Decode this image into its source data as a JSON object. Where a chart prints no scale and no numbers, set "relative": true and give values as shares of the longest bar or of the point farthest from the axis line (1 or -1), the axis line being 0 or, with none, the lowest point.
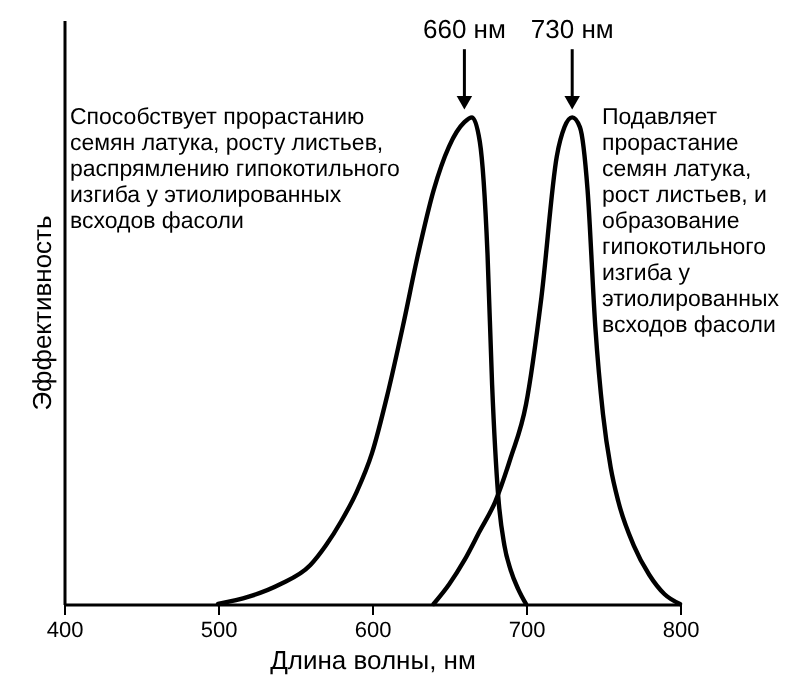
{
  "chart_data": {
    "type": "line",
    "xlabel": "Длина волны, нм",
    "ylabel": "Эффективность",
    "relative": true,
    "xlim": [
      400,
      800
    ],
    "xticks": [
      400,
      500,
      600,
      700,
      800
    ],
    "grid": false,
    "marker": "none",
    "line_style": "solid",
    "series": [
      {
        "color": "#000000",
        "x": [
          500,
          520,
          540,
          560,
          570,
          580,
          590,
          600,
          610,
          620,
          630,
          640,
          650,
          660,
          665,
          670,
          675,
          678,
          682,
          686,
          690,
          695,
          700
        ],
        "values": [
          0,
          0.015,
          0.04,
          0.08,
          0.12,
          0.17,
          0.23,
          0.31,
          0.43,
          0.57,
          0.72,
          0.85,
          0.94,
          0.99,
          1.0,
          0.95,
          0.72,
          0.45,
          0.22,
          0.12,
          0.07,
          0.03,
          0
        ]
      },
      {
        "color": "#000000",
        "x": [
          640,
          650,
          660,
          670,
          680,
          690,
          700,
          710,
          720,
          725,
          730,
          735,
          740,
          745,
          750,
          755,
          760,
          770,
          780,
          790,
          800
        ],
        "values": [
          0,
          0.04,
          0.09,
          0.15,
          0.21,
          0.3,
          0.41,
          0.63,
          0.92,
          0.98,
          1.0,
          0.98,
          0.85,
          0.57,
          0.39,
          0.28,
          0.21,
          0.12,
          0.06,
          0.02,
          0
        ]
      }
    ],
    "annotations": [
      {
        "text": "660 нм",
        "x": 660,
        "y": 1.0
      },
      {
        "text": "730 нм",
        "x": 730,
        "y": 1.0
      },
      "Способствует прорастанию\nсемян латука, росту листьев,\nраспрямлению гипокотильного\nизгиба у этиолированных\nвсходов фасоли",
      "Подавляет\nпрорастание\nсемян латука,\nрост листьев, и\nобразование\nгипокотильного\nизгиба у\nэтиолированных\nвсходов фасоли"
    ]
  }
}
